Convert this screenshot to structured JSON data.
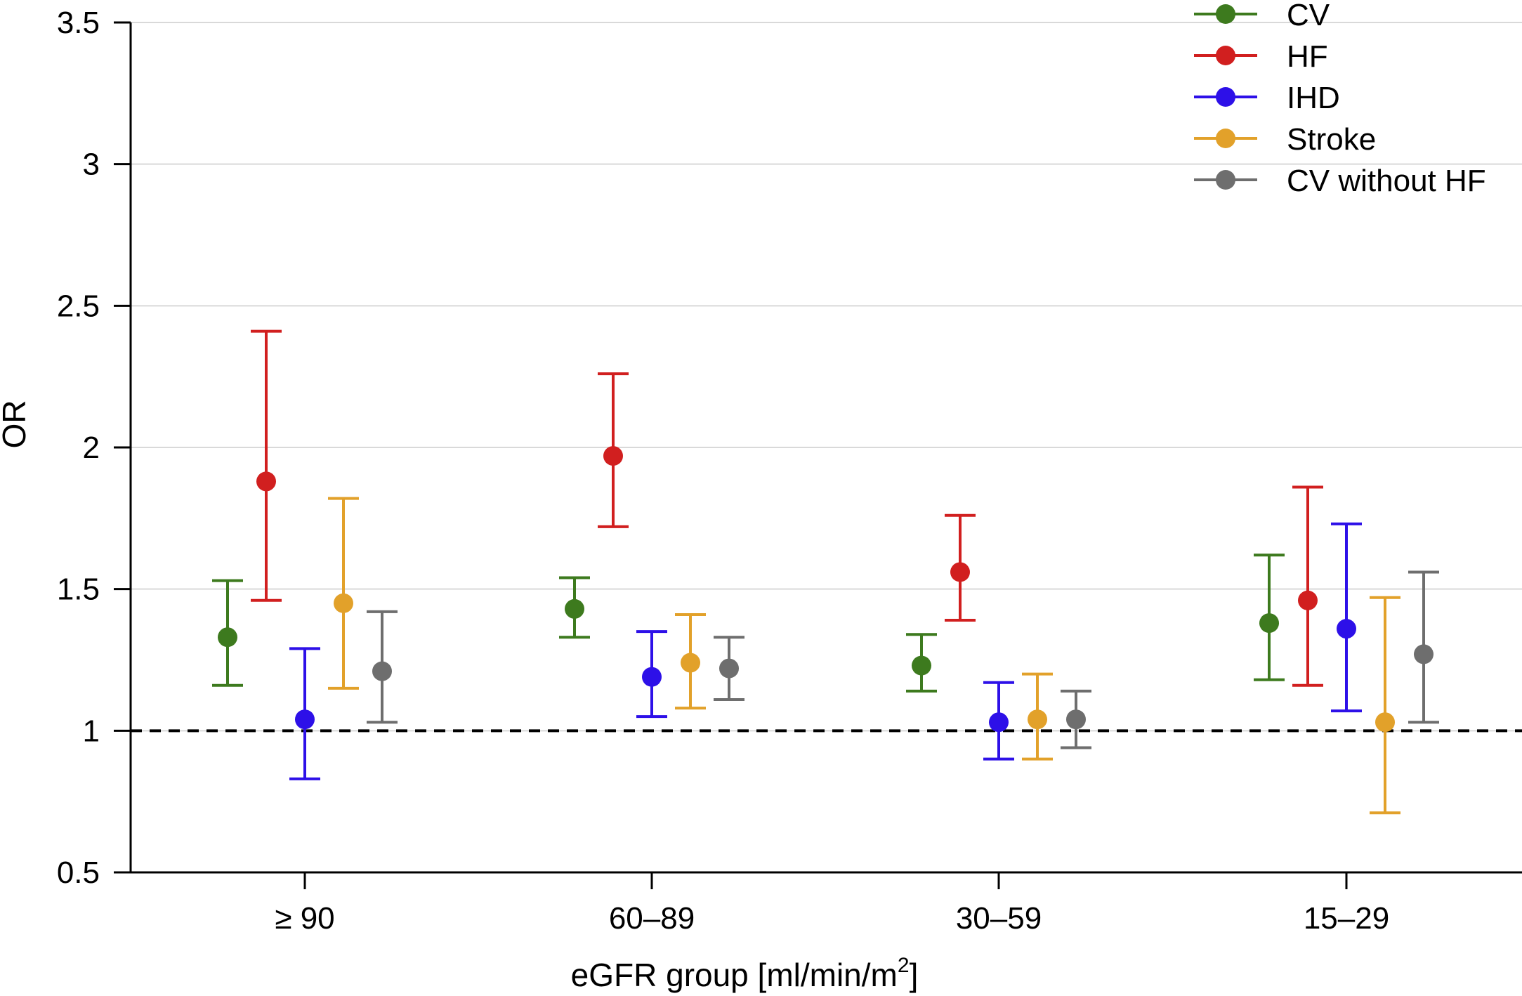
{
  "chart_data": {
    "type": "scatter",
    "subtype": "point-with-error-bars",
    "title": "",
    "xlabel_main": "eGFR group [ml/min/m",
    "xlabel_sup": "2",
    "xlabel_end": "]",
    "ylabel": "OR",
    "ylim": [
      0.5,
      3.5
    ],
    "yticks": [
      0.5,
      1,
      1.5,
      2,
      2.5,
      3,
      3.5
    ],
    "ytick_labels": [
      "0.5",
      "1",
      "1.5",
      "2",
      "2.5",
      "3",
      "3.5"
    ],
    "grid": true,
    "reference_line": 1,
    "legend_position": "top-right",
    "categories": [
      "≥ 90",
      "60–89",
      "30–59",
      "15–29"
    ],
    "series": [
      {
        "name": "CV",
        "color": "#3d7a1e",
        "values": [
          1.33,
          1.43,
          1.23,
          1.38
        ],
        "lower": [
          1.16,
          1.33,
          1.14,
          1.18
        ],
        "upper": [
          1.53,
          1.54,
          1.34,
          1.62
        ]
      },
      {
        "name": "HF",
        "color": "#d11f1f",
        "values": [
          1.88,
          1.97,
          1.56,
          1.46
        ],
        "lower": [
          1.46,
          1.72,
          1.39,
          1.16
        ],
        "upper": [
          2.41,
          2.26,
          1.76,
          1.86
        ]
      },
      {
        "name": "IHD",
        "color": "#2d10e8",
        "values": [
          1.04,
          1.19,
          1.03,
          1.36
        ],
        "lower": [
          0.83,
          1.05,
          0.9,
          1.07
        ],
        "upper": [
          1.29,
          1.35,
          1.17,
          1.73
        ]
      },
      {
        "name": "Stroke",
        "color": "#e2a12a",
        "values": [
          1.45,
          1.24,
          1.04,
          1.03
        ],
        "lower": [
          1.15,
          1.08,
          0.9,
          0.71
        ],
        "upper": [
          1.82,
          1.41,
          1.2,
          1.47
        ]
      },
      {
        "name": "CV without HF",
        "color": "#6e6e6e",
        "values": [
          1.21,
          1.22,
          1.04,
          1.27
        ],
        "lower": [
          1.03,
          1.11,
          0.94,
          1.03
        ],
        "upper": [
          1.42,
          1.33,
          1.14,
          1.56
        ]
      }
    ]
  }
}
